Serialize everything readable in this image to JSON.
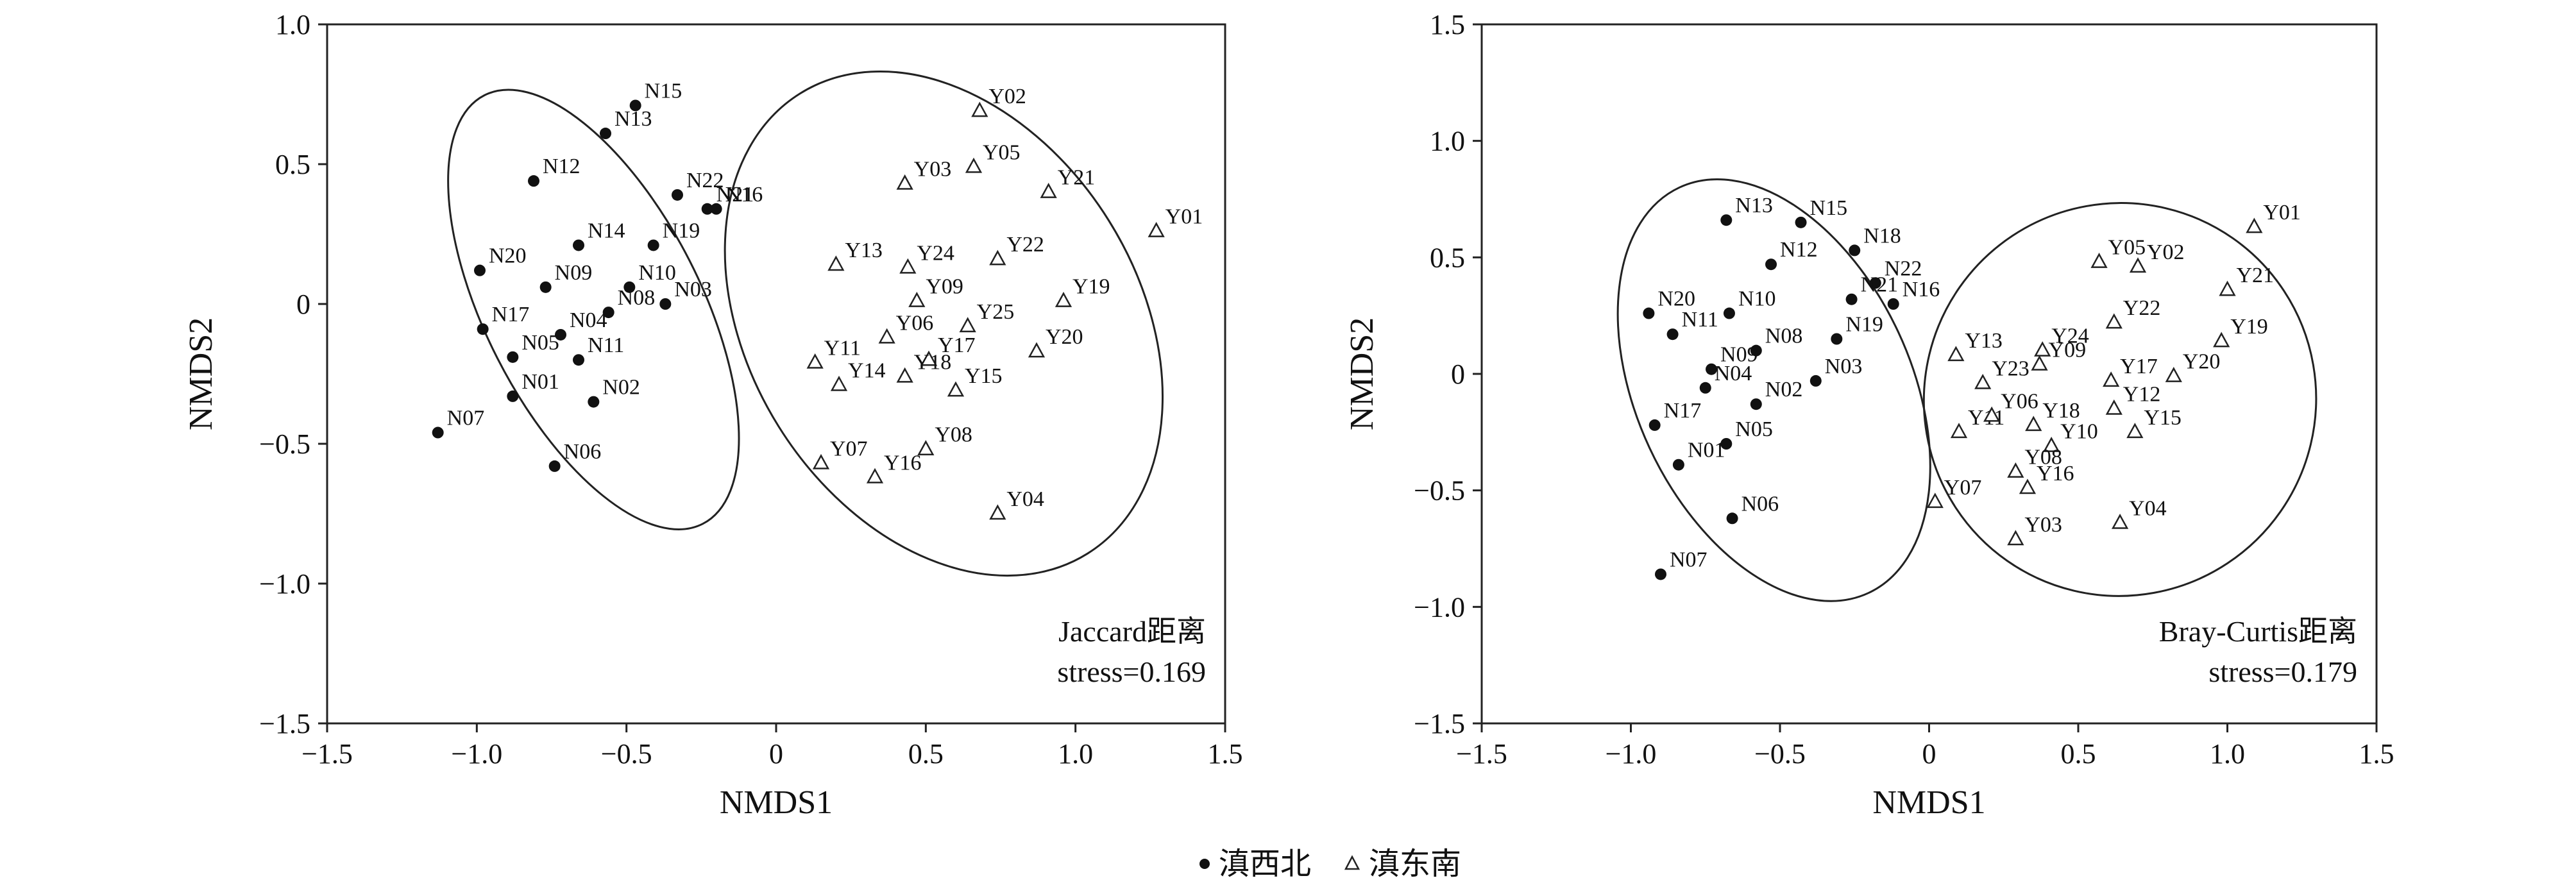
{
  "legend": {
    "north": "滇西北",
    "south": "滇东南"
  },
  "chart_data": [
    {
      "type": "scatter",
      "xlabel": "NMDS1",
      "ylabel": "NMDS2",
      "xlim": [
        -1.5,
        1.5
      ],
      "ylim": [
        -1.5,
        1.0
      ],
      "xticks": [
        "−1.5",
        "−1.0",
        "−0.5",
        "0",
        "0.5",
        "1.0",
        "1.5"
      ],
      "yticks": [
        "−1.5",
        "−1.0",
        "−0.5",
        "0",
        "0.5",
        "1.0"
      ],
      "annotation": [
        "Jaccard距离",
        "stress=0.169"
      ],
      "series": [
        {
          "name": "滇西北",
          "marker": "dot",
          "points": [
            {
              "label": "N15",
              "x": -0.47,
              "y": 0.71
            },
            {
              "label": "N13",
              "x": -0.57,
              "y": 0.61
            },
            {
              "label": "N12",
              "x": -0.81,
              "y": 0.44
            },
            {
              "label": "N22",
              "x": -0.33,
              "y": 0.39
            },
            {
              "label": "N16",
              "x": -0.2,
              "y": 0.34
            },
            {
              "label": "N21",
              "x": -0.23,
              "y": 0.34
            },
            {
              "label": "N14",
              "x": -0.66,
              "y": 0.21
            },
            {
              "label": "N19",
              "x": -0.41,
              "y": 0.21
            },
            {
              "label": "N20",
              "x": -0.99,
              "y": 0.12
            },
            {
              "label": "N09",
              "x": -0.77,
              "y": 0.06
            },
            {
              "label": "N10",
              "x": -0.49,
              "y": 0.06
            },
            {
              "label": "N03",
              "x": -0.37,
              "y": 0.0
            },
            {
              "label": "N08",
              "x": -0.56,
              "y": -0.03
            },
            {
              "label": "N04",
              "x": -0.72,
              "y": -0.11
            },
            {
              "label": "N17",
              "x": -0.98,
              "y": -0.09
            },
            {
              "label": "N05",
              "x": -0.88,
              "y": -0.19
            },
            {
              "label": "N11",
              "x": -0.66,
              "y": -0.2
            },
            {
              "label": "N01",
              "x": -0.88,
              "y": -0.33
            },
            {
              "label": "N02",
              "x": -0.61,
              "y": -0.35
            },
            {
              "label": "N07",
              "x": -1.13,
              "y": -0.46
            },
            {
              "label": "N06",
              "x": -0.74,
              "y": -0.58
            }
          ]
        },
        {
          "name": "滇东南",
          "marker": "triangle",
          "points": [
            {
              "label": "Y02",
              "x": 0.68,
              "y": 0.69
            },
            {
              "label": "Y05",
              "x": 0.66,
              "y": 0.49
            },
            {
              "label": "Y03",
              "x": 0.43,
              "y": 0.43
            },
            {
              "label": "Y21",
              "x": 0.91,
              "y": 0.4
            },
            {
              "label": "Y01",
              "x": 1.27,
              "y": 0.26
            },
            {
              "label": "Y13",
              "x": 0.2,
              "y": 0.14
            },
            {
              "label": "Y24",
              "x": 0.44,
              "y": 0.13
            },
            {
              "label": "Y22",
              "x": 0.74,
              "y": 0.16
            },
            {
              "label": "Y09",
              "x": 0.47,
              "y": 0.01
            },
            {
              "label": "Y19",
              "x": 0.96,
              "y": 0.01
            },
            {
              "label": "Y06",
              "x": 0.37,
              "y": -0.12
            },
            {
              "label": "Y25",
              "x": 0.64,
              "y": -0.08
            },
            {
              "label": "Y17",
              "x": 0.51,
              "y": -0.2
            },
            {
              "label": "Y20",
              "x": 0.87,
              "y": -0.17
            },
            {
              "label": "Y11",
              "x": 0.13,
              "y": -0.21
            },
            {
              "label": "Y14",
              "x": 0.21,
              "y": -0.29
            },
            {
              "label": "Y18",
              "x": 0.43,
              "y": -0.26
            },
            {
              "label": "Y15",
              "x": 0.6,
              "y": -0.31
            },
            {
              "label": "Y07",
              "x": 0.15,
              "y": -0.57
            },
            {
              "label": "Y08",
              "x": 0.5,
              "y": -0.52
            },
            {
              "label": "Y16",
              "x": 0.33,
              "y": -0.62
            },
            {
              "label": "Y04",
              "x": 0.74,
              "y": -0.75
            }
          ]
        }
      ],
      "ellipses": [
        {
          "cx": -0.61,
          "cy": -0.02,
          "rx": 0.36,
          "ry": 0.86,
          "angle": -27
        },
        {
          "cx": 0.56,
          "cy": -0.07,
          "rx": 0.65,
          "ry": 0.97,
          "angle": -32
        }
      ]
    },
    {
      "type": "scatter",
      "xlabel": "NMDS1",
      "ylabel": "NMDS2",
      "xlim": [
        -1.5,
        1.5
      ],
      "ylim": [
        -1.5,
        1.5
      ],
      "xticks": [
        "−1.5",
        "−1.0",
        "−0.5",
        "0",
        "0.5",
        "1.0",
        "1.5"
      ],
      "yticks": [
        "−1.5",
        "−1.0",
        "−0.5",
        "0",
        "0.5",
        "1.0",
        "1.5"
      ],
      "annotation": [
        "Bray-Curtis距离",
        "stress=0.179"
      ],
      "series": [
        {
          "name": "滇西北",
          "marker": "dot",
          "points": [
            {
              "label": "N13",
              "x": -0.68,
              "y": 0.66
            },
            {
              "label": "N15",
              "x": -0.43,
              "y": 0.65
            },
            {
              "label": "N18",
              "x": -0.25,
              "y": 0.53
            },
            {
              "label": "N12",
              "x": -0.53,
              "y": 0.47
            },
            {
              "label": "N22",
              "x": -0.18,
              "y": 0.39
            },
            {
              "label": "N21",
              "x": -0.26,
              "y": 0.32
            },
            {
              "label": "N16",
              "x": -0.12,
              "y": 0.3
            },
            {
              "label": "N20",
              "x": -0.94,
              "y": 0.26
            },
            {
              "label": "N10",
              "x": -0.67,
              "y": 0.26
            },
            {
              "label": "N11",
              "x": -0.86,
              "y": 0.17
            },
            {
              "label": "N19",
              "x": -0.31,
              "y": 0.15
            },
            {
              "label": "N08",
              "x": -0.58,
              "y": 0.1
            },
            {
              "label": "N09",
              "x": -0.73,
              "y": 0.02
            },
            {
              "label": "N04",
              "x": -0.75,
              "y": -0.06
            },
            {
              "label": "N03",
              "x": -0.38,
              "y": -0.03
            },
            {
              "label": "N02",
              "x": -0.58,
              "y": -0.13
            },
            {
              "label": "N17",
              "x": -0.92,
              "y": -0.22
            },
            {
              "label": "N05",
              "x": -0.68,
              "y": -0.3
            },
            {
              "label": "N01",
              "x": -0.84,
              "y": -0.39
            },
            {
              "label": "N06",
              "x": -0.66,
              "y": -0.62
            },
            {
              "label": "N07",
              "x": -0.9,
              "y": -0.86
            }
          ]
        },
        {
          "name": "滇东南",
          "marker": "triangle",
          "points": [
            {
              "label": "Y01",
              "x": 1.09,
              "y": 0.63
            },
            {
              "label": "Y05",
              "x": 0.57,
              "y": 0.48
            },
            {
              "label": "Y02",
              "x": 0.7,
              "y": 0.46
            },
            {
              "label": "Y21",
              "x": 1.0,
              "y": 0.36
            },
            {
              "label": "Y22",
              "x": 0.62,
              "y": 0.22
            },
            {
              "label": "Y19",
              "x": 0.98,
              "y": 0.14
            },
            {
              "label": "Y13",
              "x": 0.09,
              "y": 0.08
            },
            {
              "label": "Y24",
              "x": 0.38,
              "y": 0.1
            },
            {
              "label": "Y09",
              "x": 0.37,
              "y": 0.04
            },
            {
              "label": "Y23",
              "x": 0.18,
              "y": -0.04
            },
            {
              "label": "Y17",
              "x": 0.61,
              "y": -0.03
            },
            {
              "label": "Y20",
              "x": 0.82,
              "y": -0.01
            },
            {
              "label": "Y12",
              "x": 0.62,
              "y": -0.15
            },
            {
              "label": "Y11",
              "x": 0.1,
              "y": -0.25
            },
            {
              "label": "Y06",
              "x": 0.21,
              "y": -0.18
            },
            {
              "label": "Y18",
              "x": 0.35,
              "y": -0.22
            },
            {
              "label": "Y10",
              "x": 0.41,
              "y": -0.31
            },
            {
              "label": "Y15",
              "x": 0.69,
              "y": -0.25
            },
            {
              "label": "Y07",
              "x": 0.02,
              "y": -0.55
            },
            {
              "label": "Y08",
              "x": 0.29,
              "y": -0.42
            },
            {
              "label": "Y16",
              "x": 0.33,
              "y": -0.49
            },
            {
              "label": "Y03",
              "x": 0.29,
              "y": -0.71
            },
            {
              "label": "Y04",
              "x": 0.64,
              "y": -0.64
            }
          ]
        }
      ],
      "ellipses": [
        {
          "cx": -0.52,
          "cy": -0.07,
          "rx": 0.46,
          "ry": 0.96,
          "angle": -25
        },
        {
          "cx": 0.64,
          "cy": -0.11,
          "rx": 0.66,
          "ry": 0.84,
          "angle": -55
        }
      ]
    }
  ]
}
